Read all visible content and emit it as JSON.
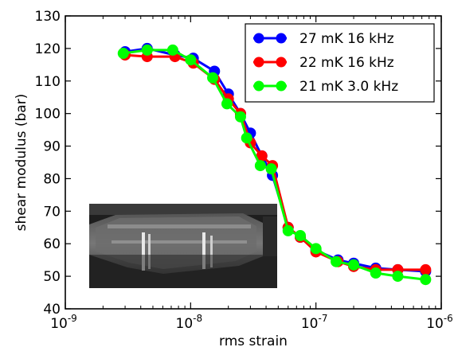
{
  "chart_data": {
    "type": "line",
    "xscale": "log",
    "xlim": [
      1e-09,
      1e-06
    ],
    "ylim": [
      40,
      130
    ],
    "xlabel": "rms strain",
    "ylabel": "shear modulus (bar)",
    "y_ticks": [
      40,
      50,
      60,
      70,
      80,
      90,
      100,
      110,
      120,
      130
    ],
    "x_ticks": [
      {
        "value": 1e-09,
        "base": "10",
        "exp": "-9"
      },
      {
        "value": 1e-08,
        "base": "10",
        "exp": "-8"
      },
      {
        "value": 1e-07,
        "base": "10",
        "exp": "-7"
      },
      {
        "value": 1e-06,
        "base": "10",
        "exp": "-6"
      }
    ],
    "legend_position": "top-right",
    "series": [
      {
        "name": "27 mK 16 kHz",
        "color": "#0000ff",
        "x": [
          3e-09,
          4.5e-09,
          7.5e-09,
          1.05e-08,
          1.55e-08,
          2e-08,
          2.5e-08,
          3e-08,
          3.7e-08,
          4.5e-08,
          6e-08,
          7.5e-08,
          1e-07,
          1.5e-07,
          2e-07,
          3e-07,
          4.5e-07,
          7.5e-07
        ],
        "y": [
          119,
          120,
          118,
          117,
          113,
          106,
          100,
          94,
          87,
          81,
          65,
          62,
          58,
          55,
          54,
          52.5,
          52,
          51.5
        ]
      },
      {
        "name": "22 mK 16 kHz",
        "color": "#ff0000",
        "x": [
          3e-09,
          4.5e-09,
          7.5e-09,
          1.05e-08,
          1.55e-08,
          2e-08,
          2.5e-08,
          3e-08,
          3.7e-08,
          4.5e-08,
          6e-08,
          7.5e-08,
          1e-07,
          1.5e-07,
          2e-07,
          3e-07,
          4.5e-07,
          7.5e-07
        ],
        "y": [
          118,
          117.5,
          117.5,
          115.5,
          110.5,
          104.5,
          100,
          91,
          87,
          84,
          65,
          62,
          57.5,
          54.5,
          53,
          52,
          52,
          52
        ]
      },
      {
        "name": "21 mK 3.0 kHz",
        "color": "#00ff00",
        "x": [
          2.9e-09,
          4.5e-09,
          7.2e-09,
          1e-08,
          1.5e-08,
          1.95e-08,
          2.5e-08,
          2.8e-08,
          3.6e-08,
          4.4e-08,
          6e-08,
          7.5e-08,
          1e-07,
          1.45e-07,
          2e-07,
          3e-07,
          4.5e-07,
          7.5e-07
        ],
        "y": [
          118.5,
          119.5,
          119.5,
          116.5,
          111,
          103,
          99,
          92.5,
          84,
          83,
          64,
          62.5,
          58.5,
          54.5,
          53.5,
          51,
          50,
          49
        ]
      }
    ],
    "inset": {
      "description_icon": "crystal-cell-photo-icon"
    }
  }
}
